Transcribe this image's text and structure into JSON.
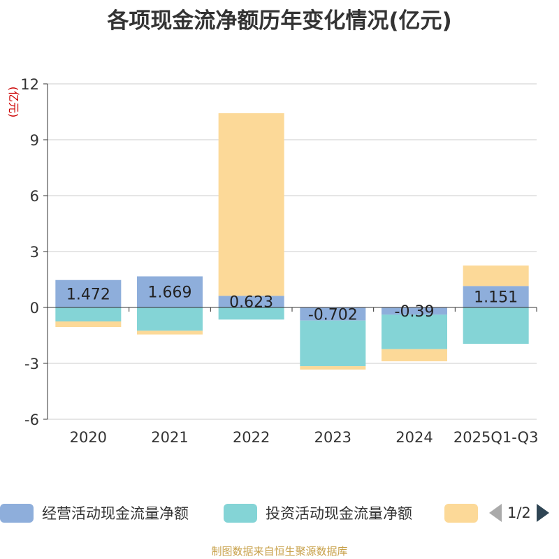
{
  "chart_data": {
    "type": "bar",
    "stacked": true,
    "title": "各项现金流净额历年变化情况(亿元)",
    "ylabel": "(亿元)",
    "xlabel": "",
    "ylim": [
      -6,
      12
    ],
    "yticks": [
      12,
      9,
      6,
      3,
      0,
      -3,
      -6
    ],
    "categories": [
      "2020",
      "2021",
      "2022",
      "2023",
      "2024",
      "2025Q1-Q3"
    ],
    "series": [
      {
        "name": "经营活动现金流量净额",
        "color": "#8eaedb",
        "values": [
          1.472,
          1.669,
          0.623,
          -0.702,
          -0.39,
          1.151
        ],
        "labels_shown": true
      },
      {
        "name": "投资活动现金流量净额",
        "color": "#84d4d6",
        "values": [
          -0.75,
          -1.25,
          -0.65,
          -2.45,
          -1.85,
          -1.95
        ],
        "labels_shown": false
      },
      {
        "name": "",
        "color": "#fcd998",
        "values": [
          -0.3,
          -0.2,
          9.8,
          -0.18,
          -0.65,
          1.1
        ],
        "labels_shown": false
      }
    ]
  },
  "legend": {
    "items": [
      {
        "label": "经营活动现金流量净额",
        "color": "#8eaedb"
      },
      {
        "label": "投资活动现金流量净额",
        "color": "#84d4d6"
      },
      {
        "label": "",
        "color": "#fcd998"
      }
    ],
    "pager": "1/2"
  },
  "source": "制图数据来自恒生聚源数据库"
}
